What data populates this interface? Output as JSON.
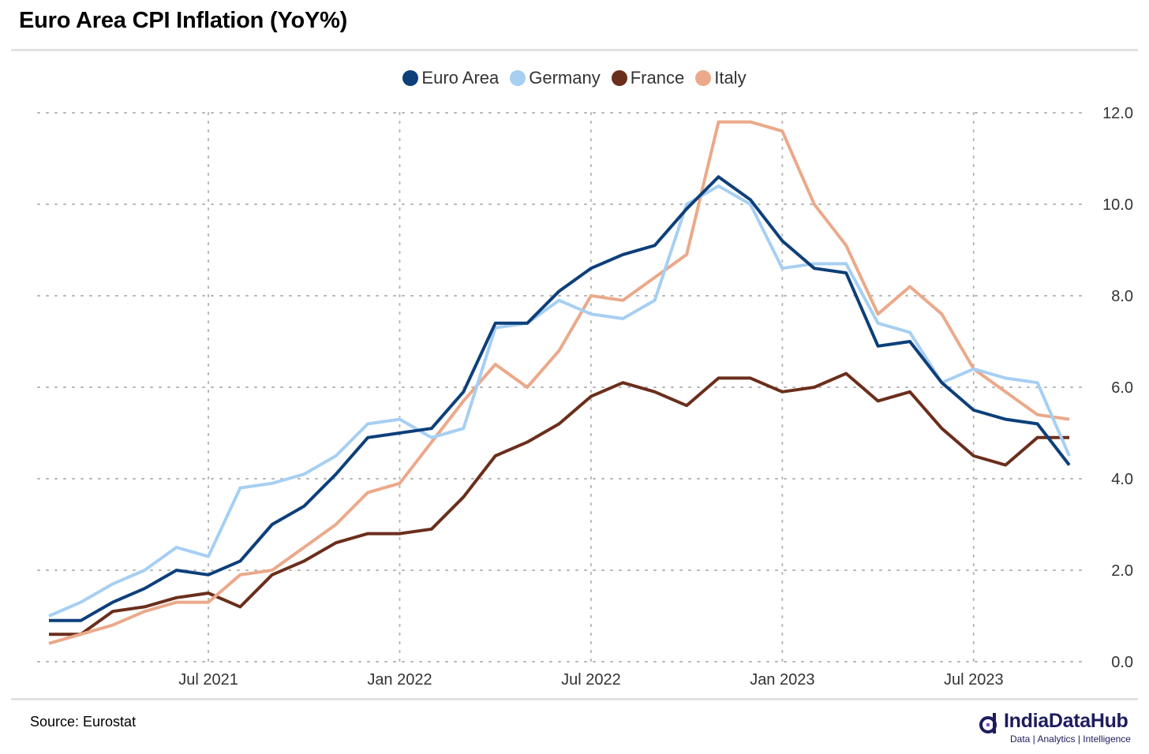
{
  "title": "Euro Area CPI Inflation (YoY%)",
  "source": "Source: Eurostat",
  "logo": {
    "name": "IndiaDataHub",
    "tagline": "Data | Analytics | Intelligence",
    "color": "#1c1c5e"
  },
  "chart_data": {
    "type": "line",
    "title": "Euro Area CPI Inflation (YoY%)",
    "xlabel": "",
    "ylabel": "",
    "x": [
      "2021-02",
      "2021-03",
      "2021-04",
      "2021-05",
      "2021-06",
      "2021-07",
      "2021-08",
      "2021-09",
      "2021-10",
      "2021-11",
      "2021-12",
      "2022-01",
      "2022-02",
      "2022-03",
      "2022-04",
      "2022-05",
      "2022-06",
      "2022-07",
      "2022-08",
      "2022-09",
      "2022-10",
      "2022-11",
      "2022-12",
      "2023-01",
      "2023-02",
      "2023-03",
      "2023-04",
      "2023-05",
      "2023-06",
      "2023-07",
      "2023-08",
      "2023-09",
      "2023-10"
    ],
    "x_ticks": [
      {
        "x": "2021-07",
        "label": "Jul 2021"
      },
      {
        "x": "2022-01",
        "label": "Jan 2022"
      },
      {
        "x": "2022-07",
        "label": "Jul 2022"
      },
      {
        "x": "2023-01",
        "label": "Jan 2023"
      },
      {
        "x": "2023-07",
        "label": "Jul 2023"
      }
    ],
    "y_ticks": [
      "0.0",
      "2.0",
      "4.0",
      "6.0",
      "8.0",
      "10.0",
      "12.0"
    ],
    "ylim": [
      0,
      12
    ],
    "y_axis_side": "right",
    "grid": "dotted",
    "legend": "top-center",
    "series": [
      {
        "name": "Euro Area",
        "color": "#0d3f7a",
        "values": [
          0.9,
          0.9,
          1.3,
          1.6,
          2.0,
          1.9,
          2.2,
          3.0,
          3.4,
          4.1,
          4.9,
          5.0,
          5.1,
          5.9,
          7.4,
          7.4,
          8.1,
          8.6,
          8.9,
          9.1,
          9.9,
          10.6,
          10.1,
          9.2,
          8.6,
          8.5,
          6.9,
          7.0,
          6.1,
          5.5,
          5.3,
          5.2,
          4.3
        ]
      },
      {
        "name": "Germany",
        "color": "#a6cff2",
        "values": [
          1.0,
          1.3,
          1.7,
          2.0,
          2.5,
          2.3,
          3.8,
          3.9,
          4.1,
          4.5,
          5.2,
          5.3,
          4.9,
          5.1,
          7.3,
          7.4,
          7.9,
          7.6,
          7.5,
          7.9,
          10.0,
          10.4,
          10.0,
          8.6,
          8.7,
          8.7,
          7.4,
          7.2,
          6.1,
          6.4,
          6.2,
          6.1,
          4.5
        ]
      },
      {
        "name": "France",
        "color": "#6b2e1c",
        "values": [
          0.6,
          0.6,
          1.1,
          1.2,
          1.4,
          1.5,
          1.2,
          1.9,
          2.2,
          2.6,
          2.8,
          2.8,
          2.9,
          3.6,
          4.5,
          4.8,
          5.2,
          5.8,
          6.1,
          5.9,
          5.6,
          6.2,
          6.2,
          5.9,
          6.0,
          6.3,
          5.7,
          5.9,
          5.1,
          4.5,
          4.3,
          4.9,
          4.9
        ]
      },
      {
        "name": "Italy",
        "color": "#eba98a",
        "values": [
          0.4,
          0.6,
          0.8,
          1.1,
          1.3,
          1.3,
          1.9,
          2.0,
          2.5,
          3.0,
          3.7,
          3.9,
          4.8,
          5.7,
          6.5,
          6.0,
          6.8,
          8.0,
          7.9,
          8.4,
          8.9,
          11.8,
          11.8,
          11.6,
          10.0,
          9.1,
          7.6,
          8.2,
          7.6,
          6.4,
          5.9,
          5.4,
          5.3
        ]
      }
    ]
  }
}
